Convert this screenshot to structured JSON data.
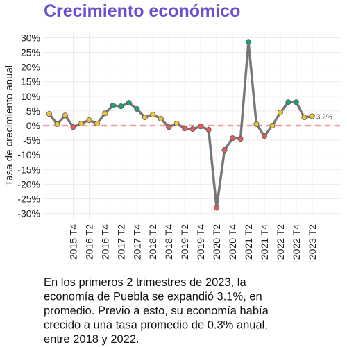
{
  "chart_data": {
    "type": "line",
    "title": "Crecimiento económico",
    "y_label": "Tasa de crecimiento anual",
    "categories": [
      null,
      null,
      null,
      "2015 T4",
      null,
      "2016 T2",
      null,
      "2016 T4",
      null,
      "2017 T2",
      null,
      "2017 T4",
      null,
      "2018 T2",
      null,
      "2018 T4",
      null,
      "2019 T2",
      null,
      "2019 T4",
      null,
      "2020 T2",
      null,
      "2020 T4",
      null,
      "2021 T2",
      null,
      "2021 T4",
      null,
      "2022 T2",
      null,
      "2022 T4",
      null,
      "2023 T2"
    ],
    "series": [
      {
        "color": "#777777",
        "values": [
          4.0,
          0.5,
          3.5,
          -0.5,
          0.7,
          1.9,
          0.7,
          4.2,
          6.9,
          6.6,
          7.8,
          5.7,
          2.8,
          3.8,
          2.4,
          -0.5,
          0.7,
          -1.0,
          -1.2,
          -0.3,
          -1.4,
          -28.1,
          -8.3,
          -4.3,
          -4.5,
          28.6,
          0.5,
          -3.6,
          0.0,
          4.5,
          8.0,
          8.0,
          2.8,
          3.2
        ],
        "value_labels": [
          null,
          null,
          null,
          null,
          null,
          null,
          null,
          null,
          null,
          null,
          null,
          null,
          null,
          null,
          null,
          null,
          null,
          null,
          null,
          null,
          null,
          null,
          null,
          null,
          null,
          null,
          null,
          null,
          null,
          null,
          null,
          null,
          null,
          "3.2%"
        ],
        "point_colors": [
          "#f1c232",
          "#f1c232",
          "#f1c232",
          "#e85a5a",
          "#f1c232",
          "#f1c232",
          "#f1c232",
          "#f1c232",
          "#1aa37a",
          "#1aa37a",
          "#1aa37a",
          "#1aa37a",
          "#f1c232",
          "#f1c232",
          "#f1c232",
          "#e85a5a",
          "#f1c232",
          "#e85a5a",
          "#e85a5a",
          "#e85a5a",
          "#e85a5a",
          "#e85a5a",
          "#e85a5a",
          "#e85a5a",
          "#e85a5a",
          "#1aa37a",
          "#f1c232",
          "#e85a5a",
          "#f1c232",
          "#f1c232",
          "#1aa37a",
          "#1aa37a",
          "#f1c232",
          "#f1c232"
        ]
      }
    ],
    "ylim": [
      -32,
      32
    ],
    "yticks": [
      {
        "value": -30,
        "label": "-30%"
      },
      {
        "value": -25,
        "label": "-25%"
      },
      {
        "value": -20,
        "label": "-20%"
      },
      {
        "value": -15,
        "label": "-15%"
      },
      {
        "value": -10,
        "label": "-10%"
      },
      {
        "value": -5,
        "label": "-5%"
      },
      {
        "value": 0,
        "label": "0%"
      },
      {
        "value": 5,
        "label": "5%"
      },
      {
        "value": 10,
        "label": "10%"
      },
      {
        "value": 15,
        "label": "15%"
      },
      {
        "value": 20,
        "label": "20%"
      },
      {
        "value": 25,
        "label": "25%"
      },
      {
        "value": 30,
        "label": "30%"
      }
    ],
    "reference_line": {
      "value": 0,
      "color": "#f29b9b"
    },
    "grid": true,
    "caption_lines": [
      "En los primeros 2 trimestres de 2023, la",
      "economía de Puebla se expandió 3.1%, en",
      "promedio. Previo a esto, su economía había",
      "crecido a una tasa promedio de 0.3% anual,",
      "entre 2018 y 2022."
    ]
  }
}
